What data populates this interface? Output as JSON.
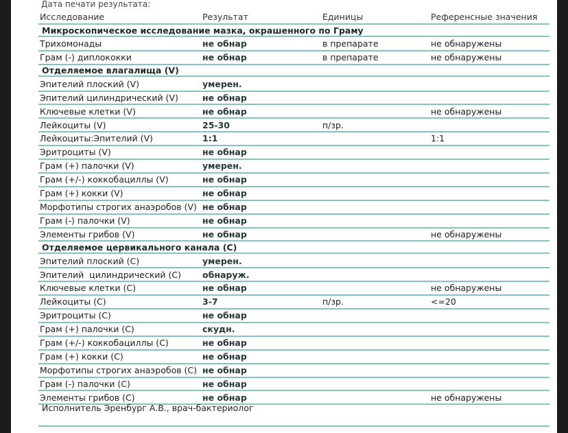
{
  "top_label": "Дата печати результата:",
  "header": {
    "name": "Исследование",
    "result": "Результат",
    "units": "Единицы",
    "ref": "Референсные значения"
  },
  "rows": [
    {
      "section": "Микроскопическое исследование мазка, окрашенного по Граму"
    },
    {
      "name": "Трихомонады",
      "result": "не обнар",
      "units": "в препарате",
      "ref": "не обнаружены"
    },
    {
      "name": "Грам (-) диплококки",
      "result": "не обнар",
      "units": "в препарате",
      "ref": "не обнаружены"
    },
    {
      "section": "Отделяемое влагалища (V)"
    },
    {
      "name": "Эпителий плоский (V)",
      "result": "умерен.",
      "units": "",
      "ref": ""
    },
    {
      "name": "Эпителий цилиндрический (V)",
      "result": "не обнар",
      "units": "",
      "ref": ""
    },
    {
      "name": "Ключевые клетки (V)",
      "result": "не обнар",
      "units": "",
      "ref": "не обнаружены"
    },
    {
      "name": "Лейкоциты (V)",
      "result": "25-30",
      "units": "п/зр.",
      "ref": ""
    },
    {
      "name": "Лейкоциты:Эпителий (V)",
      "result": "1:1",
      "units": "",
      "ref": "1:1"
    },
    {
      "name": "Эритроциты (V)",
      "result": "не обнар",
      "units": "",
      "ref": ""
    },
    {
      "name": "Грам (+) палочки (V)",
      "result": "умерен.",
      "units": "",
      "ref": ""
    },
    {
      "name": "Грам (+/-) коккобациллы (V)",
      "result": "не обнар",
      "units": "",
      "ref": ""
    },
    {
      "name": "Грам (+) кокки (V)",
      "result": "не обнар",
      "units": "",
      "ref": ""
    },
    {
      "name": "Морфотипы строгих анаэробов (V)",
      "result": "не обнар",
      "units": "",
      "ref": ""
    },
    {
      "name": "Грам (-) палочки (V)",
      "result": "не обнар",
      "units": "",
      "ref": ""
    },
    {
      "name": "Элементы грибов (V)",
      "result": "не обнар",
      "units": "",
      "ref": "не обнаружены"
    },
    {
      "section": "Отделяемое цервикального канала (C)"
    },
    {
      "name": "Эпителий плоский (C)",
      "result": "умерен.",
      "units": "",
      "ref": ""
    },
    {
      "name": "Эпителий  цилиндрический (C)",
      "result": "обнаруж.",
      "units": "",
      "ref": ""
    },
    {
      "name": "Ключевые клетки (C)",
      "result": "не обнар",
      "units": "",
      "ref": "не обнаружены"
    },
    {
      "name": "Лейкоциты (C)",
      "result": "3-7",
      "units": "п/зр.",
      "ref": "<=20"
    },
    {
      "name": "Эритроциты (C)",
      "result": "не обнар",
      "units": "",
      "ref": ""
    },
    {
      "name": "Грам (+) палочки (C)",
      "result": "скудн.",
      "units": "",
      "ref": ""
    },
    {
      "name": "Грам (+/-) коккобациллы (C)",
      "result": "не обнар",
      "units": "",
      "ref": ""
    },
    {
      "name": "Грам (+) кокки (C)",
      "result": "не обнар",
      "units": "",
      "ref": ""
    },
    {
      "name": "Морфотипы строгих анаэробов (C)",
      "result": "не обнар",
      "units": "",
      "ref": ""
    },
    {
      "name": "Грам (-) палочки (C)",
      "result": "не обнар",
      "units": "",
      "ref": ""
    },
    {
      "name": "Элементы грибов (C)",
      "result": "не обнар",
      "units": "",
      "ref": "не обнаружены"
    }
  ],
  "footer": "Исполнитель Эренбург  А.В., врач-бактериолог"
}
